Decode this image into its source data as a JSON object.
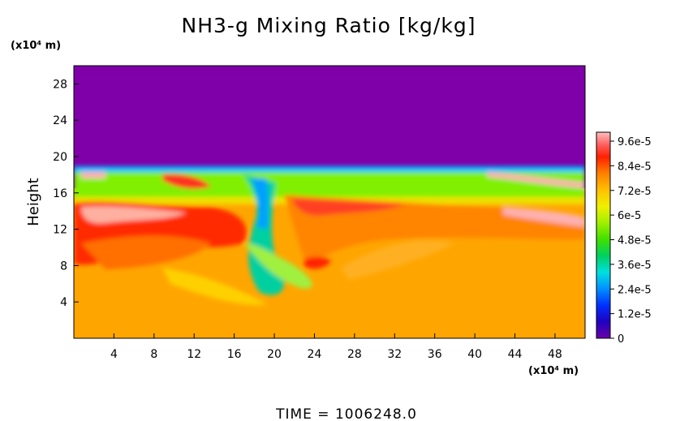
{
  "chart_data": {
    "type": "heatmap",
    "title": "NH3-g Mixing Ratio [kg/kg]",
    "ylabel": "Height",
    "y_unit": "(x10⁴ m)",
    "x_unit": "(x10⁴ m)",
    "footer": "TIME = 1006248.0",
    "x_ticks": [
      "4",
      "8",
      "12",
      "16",
      "20",
      "24",
      "28",
      "32",
      "36",
      "40",
      "44",
      "48"
    ],
    "y_ticks": [
      "4",
      "8",
      "12",
      "16",
      "20",
      "24",
      "28"
    ],
    "xlim": [
      0,
      51
    ],
    "ylim": [
      0,
      30
    ],
    "colorbar": {
      "labels": [
        "9.6e-5",
        "8.4e-5",
        "7.2e-5",
        "6e-5",
        "4.8e-5",
        "3.6e-5",
        "2.4e-5",
        "1.2e-5",
        "0"
      ],
      "range": [
        0,
        0.0001
      ]
    },
    "field": {
      "description_regions": [
        {
          "y_range": [
            19,
            30
          ],
          "value": 0
        },
        {
          "y_range": [
            16,
            19
          ],
          "value": 6e-05
        },
        {
          "y_range": [
            0,
            16
          ],
          "value": 8e-05
        }
      ]
    },
    "colors": {
      "background_top": "#7f00a8",
      "green_layer": "#7ff000",
      "orange_bulk": "#ffa500",
      "red_band": "#ff2000",
      "pink_peak": "#ffb0b0"
    }
  }
}
